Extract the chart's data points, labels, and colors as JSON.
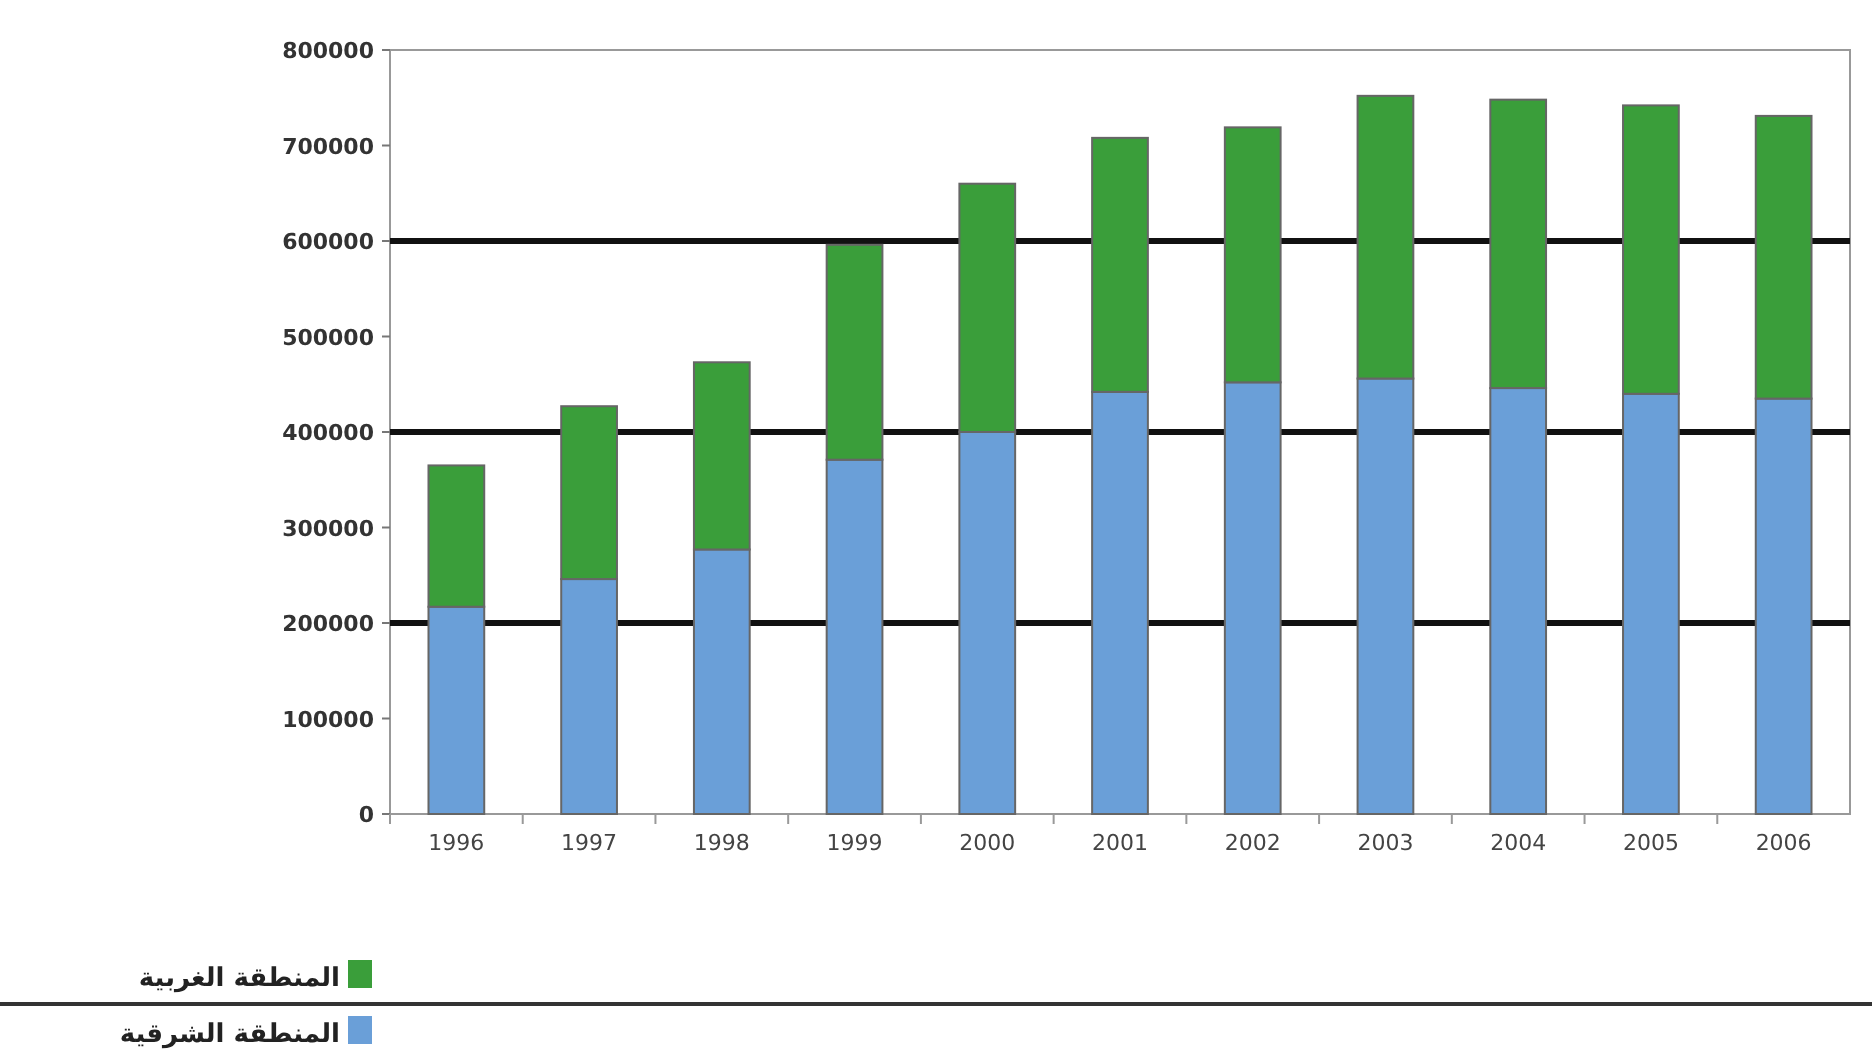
{
  "chart_data": {
    "type": "bar",
    "stacked": true,
    "categories": [
      "1996",
      "1997",
      "1998",
      "1999",
      "2000",
      "2001",
      "2002",
      "2003",
      "2004",
      "2005",
      "2006"
    ],
    "series": [
      {
        "name": "المنطقة الشرقية",
        "color": "#6a9fd8",
        "values": [
          217000,
          246000,
          277000,
          371000,
          400000,
          442000,
          452000,
          456000,
          446000,
          440000,
          435000
        ]
      },
      {
        "name": "المنطقة الغربية",
        "color": "#3a9e3a",
        "values": [
          148000,
          181000,
          196000,
          225000,
          260000,
          266000,
          267000,
          296000,
          302000,
          302000,
          296000
        ]
      }
    ],
    "ylim": [
      0,
      800000
    ],
    "yticks": [
      0,
      100000,
      200000,
      300000,
      400000,
      500000,
      600000,
      700000,
      800000
    ],
    "ref_lines": [
      {
        "axis": "y",
        "value": 200000,
        "color": "#111111"
      },
      {
        "axis": "y",
        "value": 400000,
        "color": "#111111"
      },
      {
        "axis": "y",
        "value": 600000,
        "color": "#111111"
      }
    ],
    "grid": false,
    "legend": "bottom left"
  }
}
